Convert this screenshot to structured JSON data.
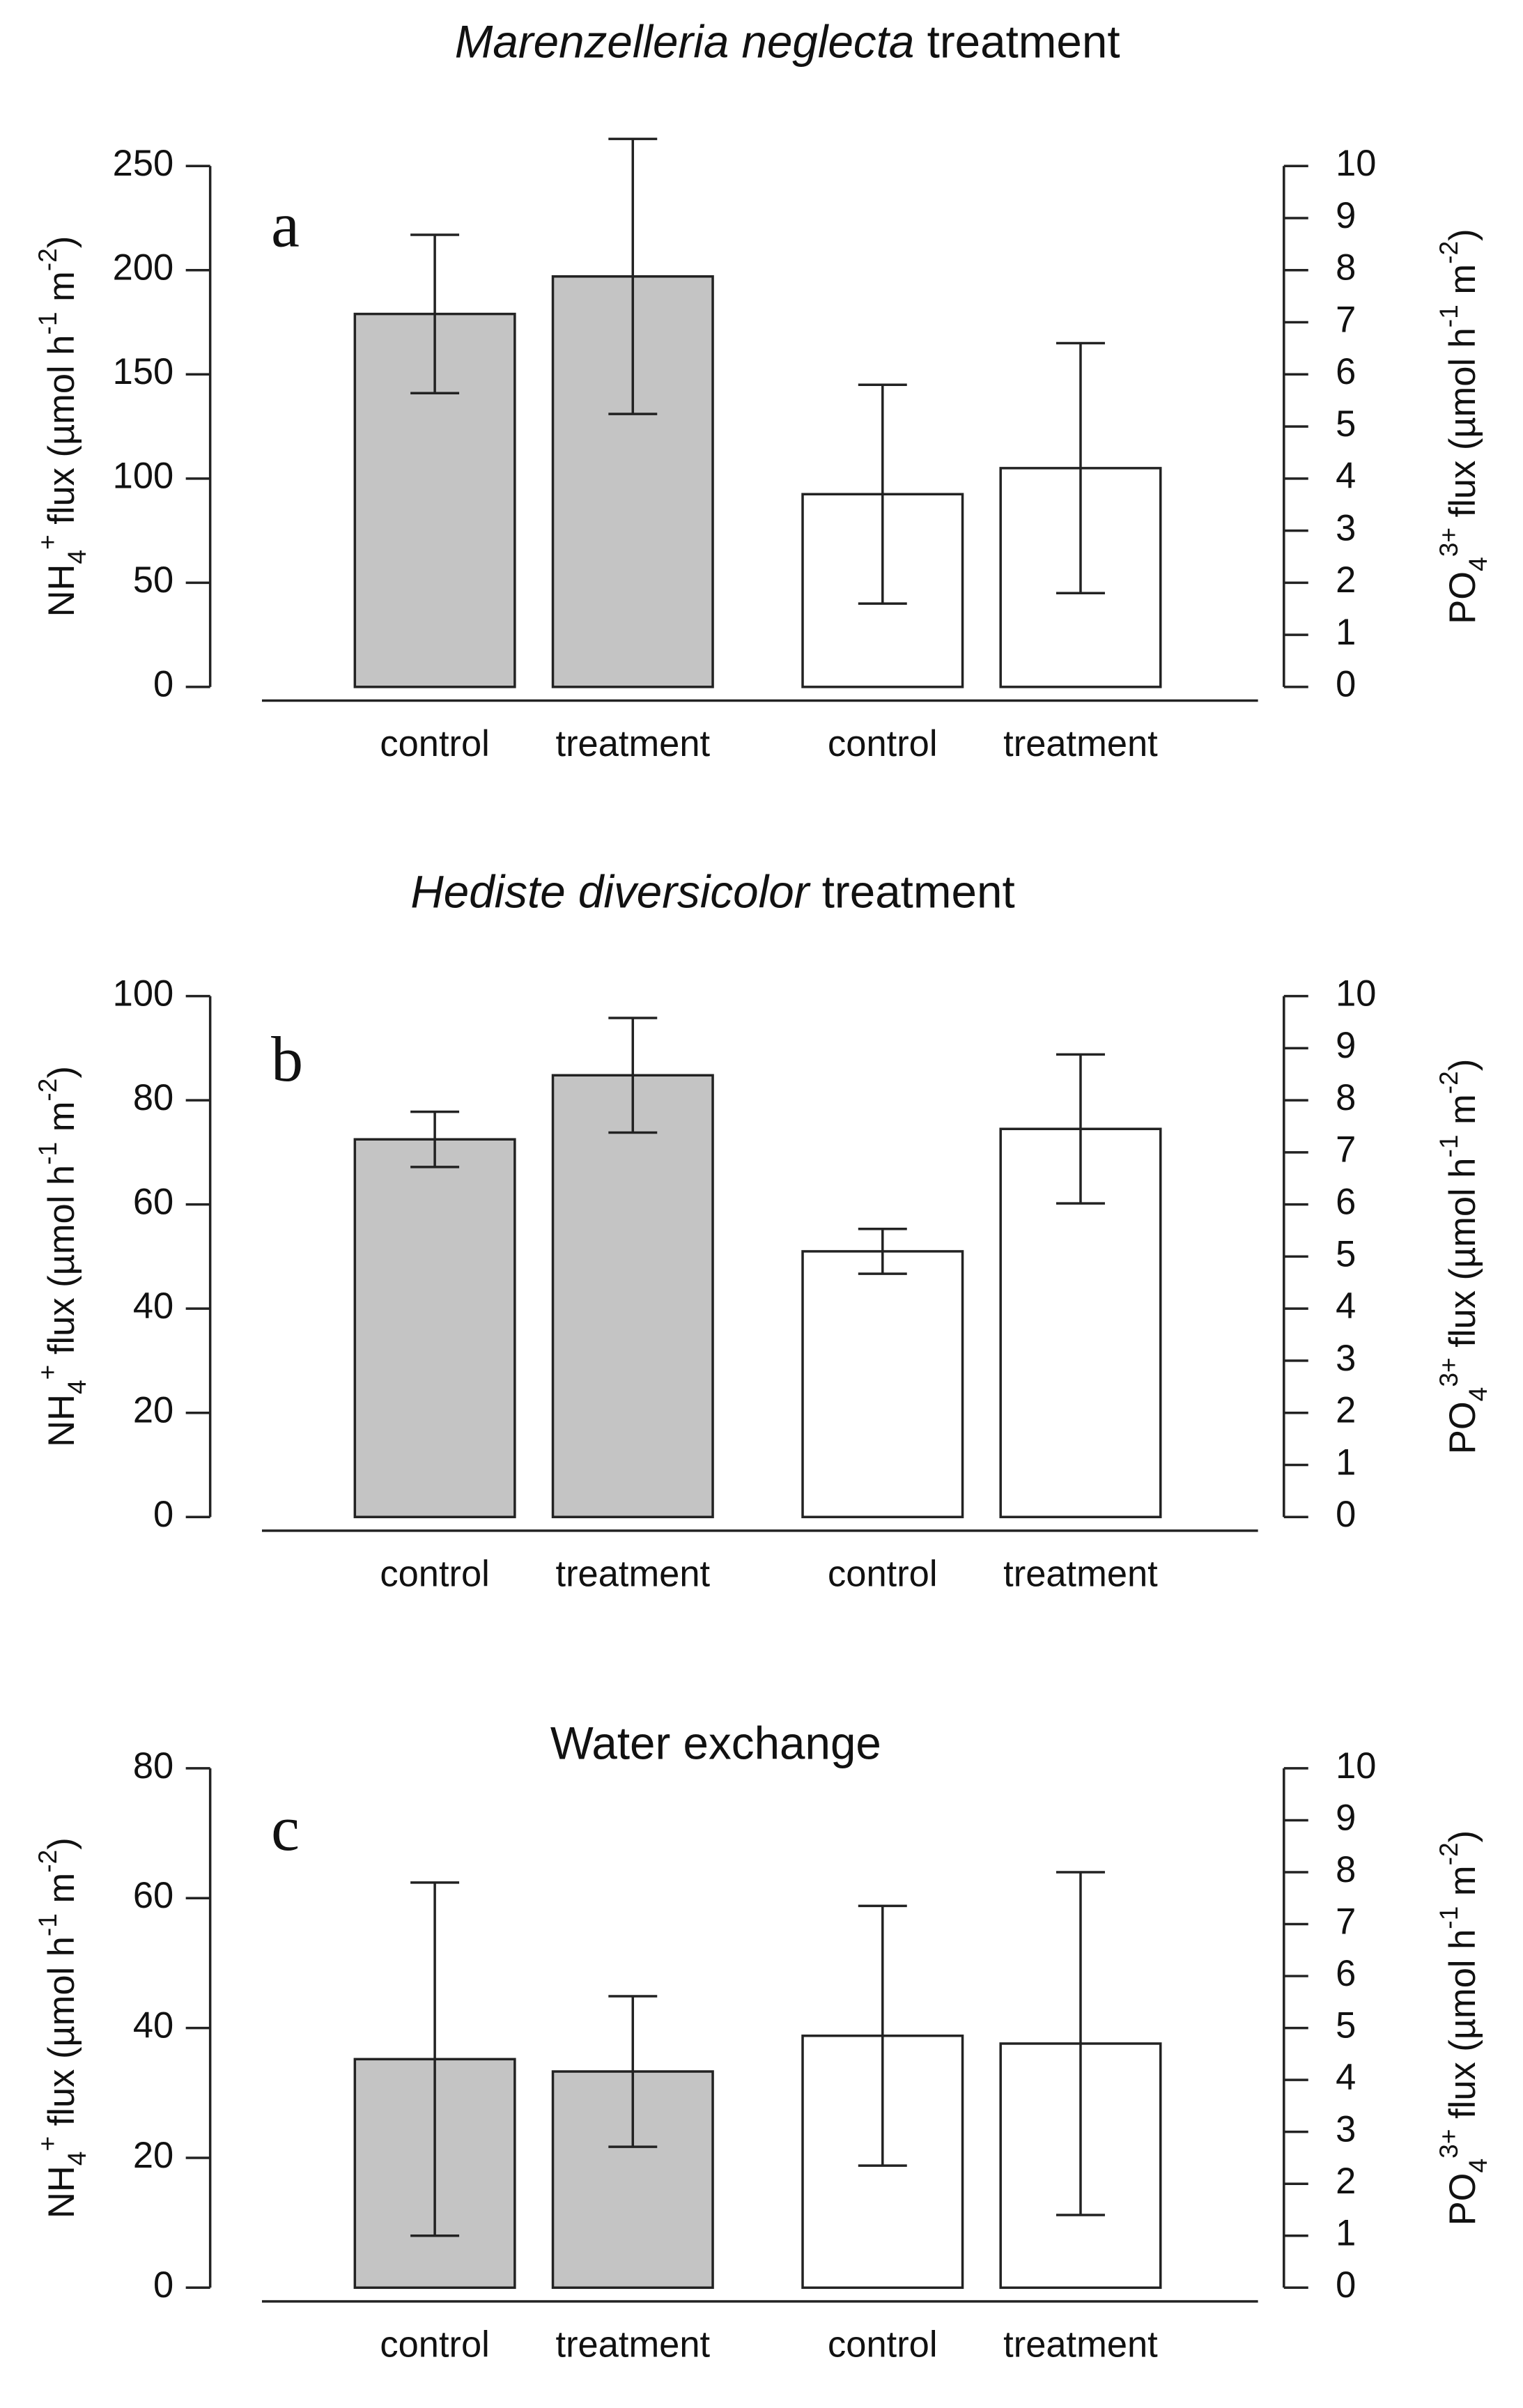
{
  "chart_data": [
    {
      "type": "bar",
      "title": [
        "Marenzelleria neglecta",
        " treatment"
      ],
      "panel": "a",
      "ylabel": [
        "NH",
        "4",
        "+",
        " flux (µmol h",
        "-1",
        " m",
        "-2",
        ")"
      ],
      "y2label": [
        "PO",
        "4",
        "3+",
        "  flux (µmol h",
        "-1",
        " m",
        "-2",
        ")"
      ],
      "ylim": [
        0,
        250
      ],
      "yticks": [
        0,
        50,
        100,
        150,
        200,
        250
      ],
      "y2lim": [
        0,
        10
      ],
      "y2ticks": [
        0,
        1,
        2,
        3,
        4,
        5,
        6,
        7,
        8,
        9,
        10
      ],
      "series": [
        {
          "categories": [
            "control",
            "treatment"
          ],
          "color": "#c4c4c4",
          "values": [
            179,
            197
          ],
          "errors": [
            38,
            66
          ]
        },
        {
          "categories": [
            "control",
            "treatment"
          ],
          "color": "#ffffff",
          "axis": "y2",
          "values": [
            3.7,
            4.2
          ],
          "errors": [
            2.1,
            2.4
          ]
        }
      ]
    },
    {
      "type": "bar",
      "title": [
        "Hediste diversicolor",
        " treatment"
      ],
      "panel": "b",
      "ylabel": [
        "NH",
        "4",
        "+",
        " flux (µmol h",
        "-1",
        " m",
        "-2",
        ")"
      ],
      "y2label": [
        "PO",
        "4",
        "3+",
        "  flux (µmol h",
        "-1",
        " m",
        "-2",
        ")"
      ],
      "ylim": [
        0,
        100
      ],
      "yticks": [
        0,
        20,
        40,
        60,
        80,
        100
      ],
      "y2lim": [
        0,
        10
      ],
      "y2ticks": [
        0,
        1,
        2,
        3,
        4,
        5,
        6,
        7,
        8,
        9,
        10
      ],
      "series": [
        {
          "categories": [
            "control",
            "treatment"
          ],
          "color": "#c4c4c4",
          "values": [
            72.5,
            84.8
          ],
          "errors": [
            5.3,
            11
          ]
        },
        {
          "categories": [
            "control",
            "treatment"
          ],
          "color": "#ffffff",
          "axis": "y2",
          "values": [
            5.1,
            7.45
          ],
          "errors": [
            0.43,
            1.43
          ]
        }
      ]
    },
    {
      "type": "bar",
      "title": [
        "Water exchange"
      ],
      "panel": "c",
      "ylabel": [
        "NH",
        "4",
        "+",
        " flux (µmol h",
        "-1",
        " m",
        "-2",
        ")"
      ],
      "y2label": [
        "PO",
        "4",
        "3+",
        "  flux (µmol h",
        "-1",
        " m",
        "-2",
        ")"
      ],
      "ylim": [
        0,
        80
      ],
      "yticks": [
        0,
        20,
        40,
        60,
        80
      ],
      "y2lim": [
        0,
        10
      ],
      "y2ticks": [
        0,
        1,
        2,
        3,
        4,
        5,
        6,
        7,
        8,
        9,
        10
      ],
      "series": [
        {
          "categories": [
            "control",
            "treatment"
          ],
          "color": "#c4c4c4",
          "values": [
            35.2,
            33.3
          ],
          "errors": [
            27.2,
            11.6
          ]
        },
        {
          "categories": [
            "control",
            "treatment"
          ],
          "color": "#ffffff",
          "axis": "y2",
          "values": [
            4.85,
            4.7
          ],
          "errors": [
            2.5,
            3.3
          ]
        }
      ]
    }
  ]
}
